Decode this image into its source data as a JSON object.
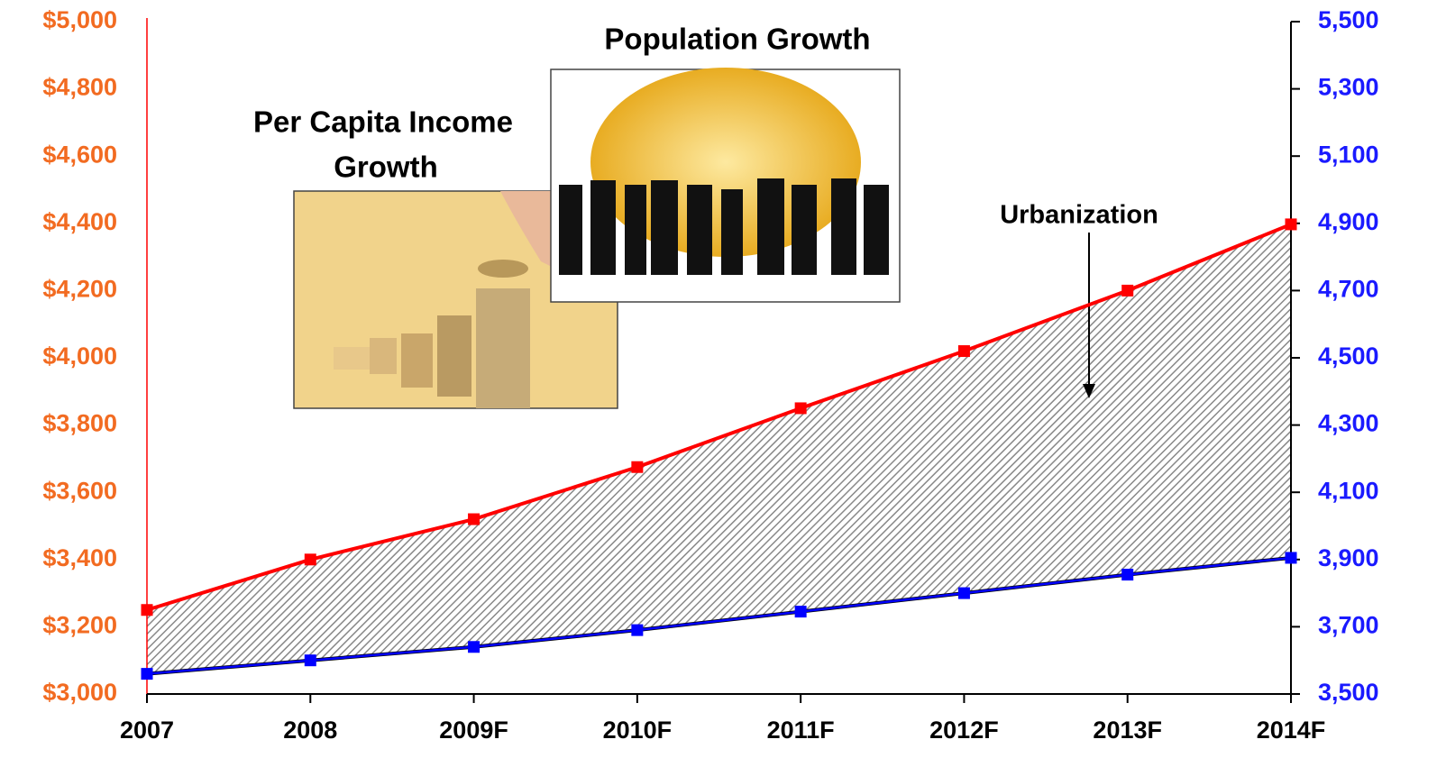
{
  "chart_data": {
    "type": "line",
    "categories": [
      "2007",
      "2008",
      "2009F",
      "2010F",
      "2011F",
      "2012F",
      "2013F",
      "2014F"
    ],
    "series": [
      {
        "color": "#ff0000",
        "axis": "y",
        "values": [
          3250,
          3400,
          3520,
          3675,
          3850,
          4020,
          4200,
          4397
        ]
      },
      {
        "color": "#0000ff",
        "axis": "y2",
        "values": [
          3560,
          3600,
          3640,
          3690,
          3745,
          3800,
          3855,
          3905
        ]
      }
    ],
    "ylim": [
      3000,
      5000
    ],
    "yticks": [
      {
        "value": 3000,
        "label": "$3,000"
      },
      {
        "value": 3200,
        "label": "$3,200"
      },
      {
        "value": 3400,
        "label": "$3,400"
      },
      {
        "value": 3600,
        "label": "$3,600"
      },
      {
        "value": 3800,
        "label": "$3,800"
      },
      {
        "value": 4000,
        "label": "$4,000"
      },
      {
        "value": 4200,
        "label": "$4,200"
      },
      {
        "value": 4400,
        "label": "$4,400"
      },
      {
        "value": 4600,
        "label": "$4,600"
      },
      {
        "value": 4800,
        "label": "$4,800"
      },
      {
        "value": 5000,
        "label": "$5,000"
      }
    ],
    "y2lim": [
      3500,
      5500
    ],
    "y2ticks": [
      {
        "value": 3500,
        "label": "3,500"
      },
      {
        "value": 3700,
        "label": "3,700"
      },
      {
        "value": 3900,
        "label": "3,900"
      },
      {
        "value": 4100,
        "label": "4,100"
      },
      {
        "value": 4300,
        "label": "4,300"
      },
      {
        "value": 4500,
        "label": "4,500"
      },
      {
        "value": 4700,
        "label": "4,700"
      },
      {
        "value": 4900,
        "label": "4,900"
      },
      {
        "value": 5100,
        "label": "5,100"
      },
      {
        "value": 5300,
        "label": "5,300"
      },
      {
        "value": 5500,
        "label": "5,500"
      }
    ],
    "yaxis_color": "#f26b21",
    "y2axis_color": "#1a1aff",
    "annotations": {
      "income": [
        "Per Capita Income",
        "Growth"
      ],
      "population": "Population Growth",
      "urbanization": "Urbanization"
    }
  }
}
